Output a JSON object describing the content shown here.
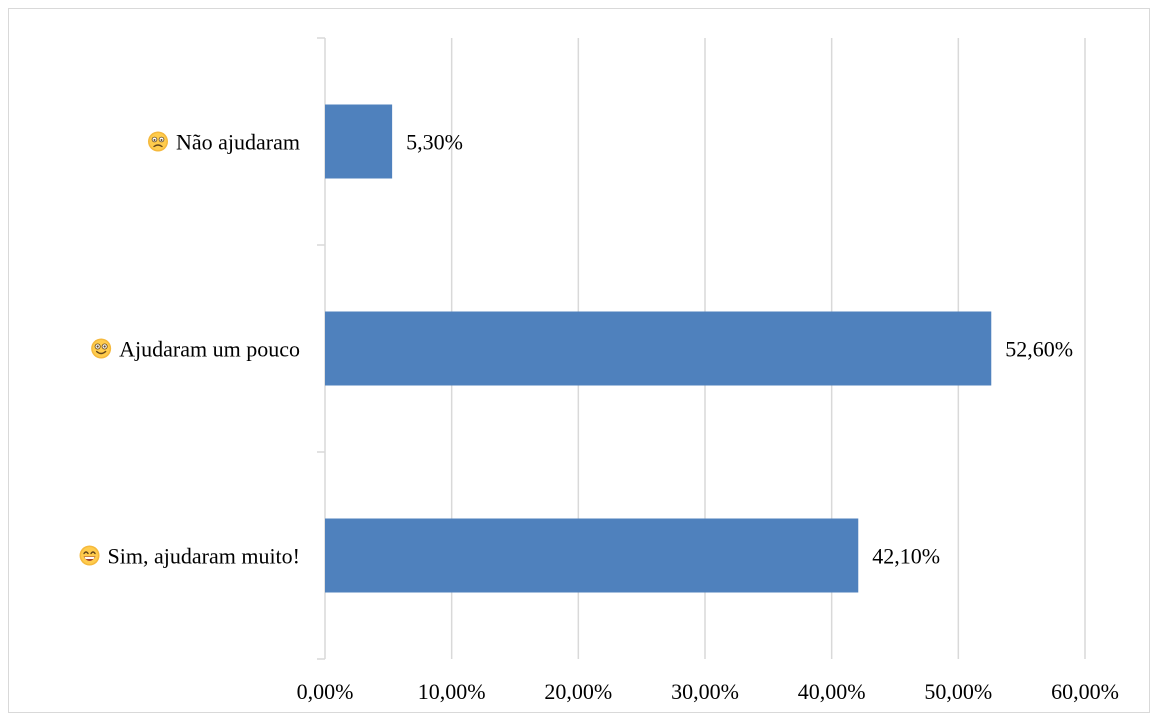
{
  "chart_data": {
    "type": "bar",
    "orientation": "horizontal",
    "categories": [
      "Não ajudaram",
      "Ajudaram um pouco",
      "Sim, ajudaram muito!"
    ],
    "category_icons": [
      "confused-face-icon",
      "slightly-smiling-face-icon",
      "grinning-face-icon"
    ],
    "values": [
      5.3,
      52.6,
      42.1
    ],
    "data_labels": [
      "5,30%",
      "52,60%",
      "42,10%"
    ],
    "xlim": [
      0,
      60
    ],
    "x_ticks": [
      0,
      10,
      20,
      30,
      40,
      50,
      60
    ],
    "x_tick_labels": [
      "0,00%",
      "10,00%",
      "20,00%",
      "30,00%",
      "40,00%",
      "50,00%",
      "60,00%"
    ],
    "grid": true,
    "legend": false,
    "bar_color": "#4f81bd",
    "grid_color": "#d9d9d9"
  }
}
